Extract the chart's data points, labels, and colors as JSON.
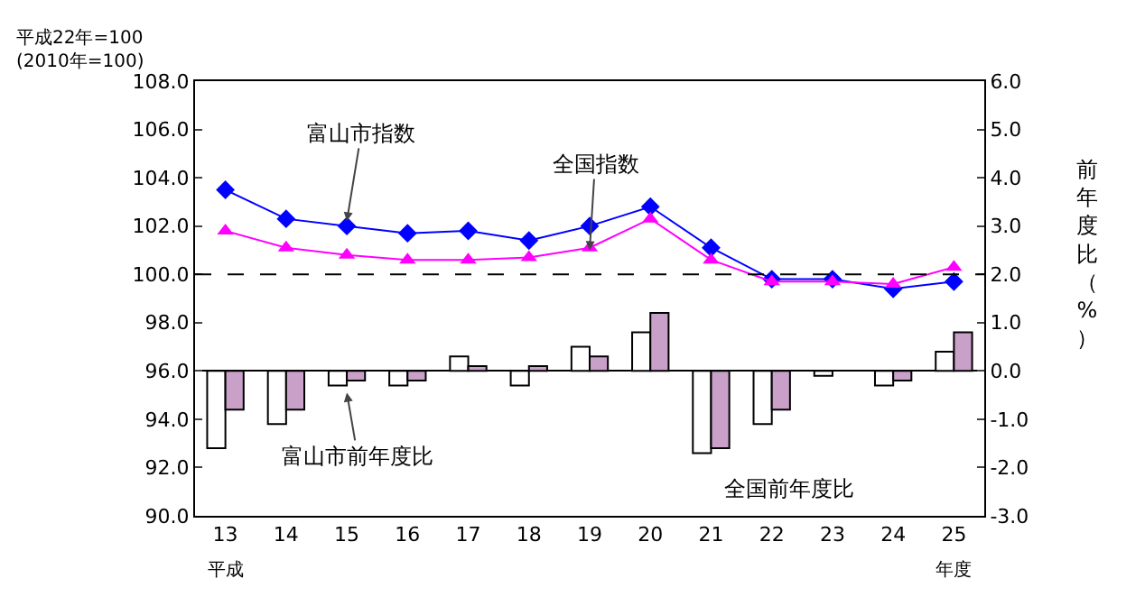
{
  "chart_data": {
    "type": "line",
    "ylabel": "平成22年=100\n(2010年=100)",
    "y2label": "前年度比（%）",
    "xlabel": "年度",
    "categories": [
      "13",
      "14",
      "15",
      "16",
      "17",
      "18",
      "19",
      "20",
      "21",
      "22",
      "23",
      "24",
      "25"
    ],
    "series": [
      {
        "type": "bar",
        "axis": "y2",
        "color": "#ffffff",
        "values": [
          -1.6,
          -1.1,
          -0.3,
          -0.3,
          0.3,
          -0.3,
          0.5,
          0.8,
          -1.7,
          -1.1,
          -0.1,
          -0.3,
          0.4
        ]
      },
      {
        "type": "bar",
        "axis": "y2",
        "color": "#c8a0c8",
        "values": [
          -0.8,
          -0.8,
          -0.2,
          -0.2,
          0.1,
          0.1,
          0.3,
          1.2,
          -1.6,
          -0.8,
          null,
          -0.2,
          0.8
        ]
      },
      {
        "color": "#0000ff",
        "marker": "diamond",
        "values": [
          103.5,
          102.3,
          102.0,
          101.7,
          101.8,
          101.4,
          102.0,
          102.8,
          101.1,
          99.8,
          99.8,
          99.4,
          99.7
        ]
      },
      {
        "color": "#ff00ff",
        "marker": "triangle",
        "values": [
          101.8,
          101.1,
          100.8,
          100.6,
          100.6,
          100.7,
          101.1,
          102.3,
          100.6,
          99.7,
          99.7,
          99.6,
          100.3
        ]
      }
    ],
    "ylim": [
      90,
      108
    ],
    "yticks": [
      {
        "value": 90,
        "label": "90.0"
      },
      {
        "value": 92,
        "label": "92.0"
      },
      {
        "value": 94,
        "label": "94.0"
      },
      {
        "value": 96,
        "label": "96.0"
      },
      {
        "value": 98,
        "label": "98.0"
      },
      {
        "value": 100,
        "label": "100.0"
      },
      {
        "value": 102,
        "label": "102.0"
      },
      {
        "value": 104,
        "label": "104.0"
      },
      {
        "value": 106,
        "label": "106.0"
      },
      {
        "value": 108,
        "label": "108.0"
      }
    ],
    "y2lim": [
      -3,
      6
    ],
    "y2ticks": [
      {
        "value": -3,
        "label": "-3.0"
      },
      {
        "value": -2,
        "label": "-2.0"
      },
      {
        "value": -1,
        "label": "-1.0"
      },
      {
        "value": 0,
        "label": "0.0"
      },
      {
        "value": 1,
        "label": "1.0"
      },
      {
        "value": 2,
        "label": "2.0"
      },
      {
        "value": 3,
        "label": "3.0"
      },
      {
        "value": 4,
        "label": "4.0"
      },
      {
        "value": 5,
        "label": "5.0"
      },
      {
        "value": 6,
        "label": "6.0"
      }
    ],
    "ref_lines": [
      {
        "axis": "y",
        "value": 100,
        "color": "#000000",
        "line_style": "dashed"
      }
    ],
    "annotations": [
      {
        "text": "富山市指数",
        "x": "15",
        "y": 102.2
      },
      {
        "text": "全国指数",
        "x": "19",
        "y": 101.0
      },
      {
        "text": "富山市前年度比",
        "x": "15",
        "y": 95.1
      },
      {
        "text": "全国前年度比",
        "x": "22",
        "y": 94.0
      },
      "平成"
    ],
    "grid": false
  }
}
